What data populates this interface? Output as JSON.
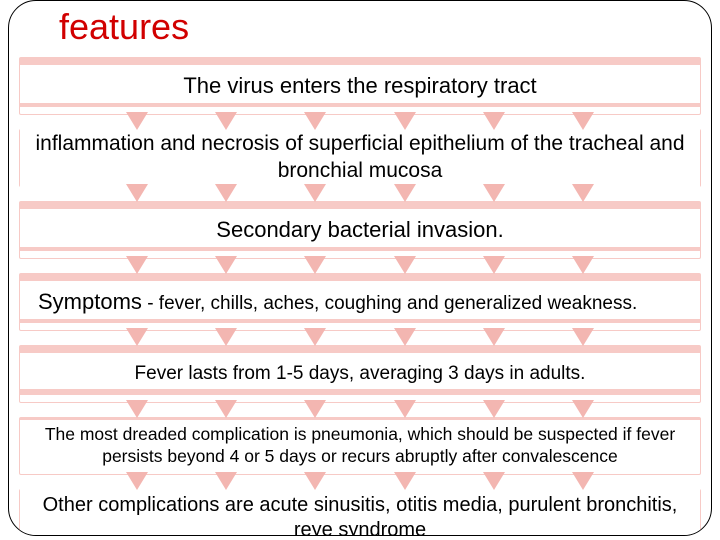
{
  "title": "features",
  "rows": [
    {
      "text": "The virus enters the respiratory tract"
    },
    {
      "text": "inflammation and necrosis of superficial epithelium of the tracheal and bronchial mucosa"
    },
    {
      "text": "Secondary bacterial invasion."
    },
    {
      "lead": "Symptoms",
      "text": " - fever, chills, aches, coughing and generalized weakness."
    },
    {
      "text": "Fever lasts from 1-5 days, averaging 3 days in adults."
    },
    {
      "text": "The most dreaded complication is pneumonia, which should be suspected if fever persists beyond 4 or 5 days or recurs abruptly after convalescence"
    },
    {
      "text": "Other complications are acute sinusitis, otitis media, purulent bronchitis, reye syndrome"
    }
  ],
  "style": {
    "title_color": "#d10000",
    "stripe_color": "#f7cac6",
    "arrow_color": "#f3b6b1",
    "background": "#ffffff",
    "border_color": "#000000",
    "arrows_per_gap": 6
  }
}
